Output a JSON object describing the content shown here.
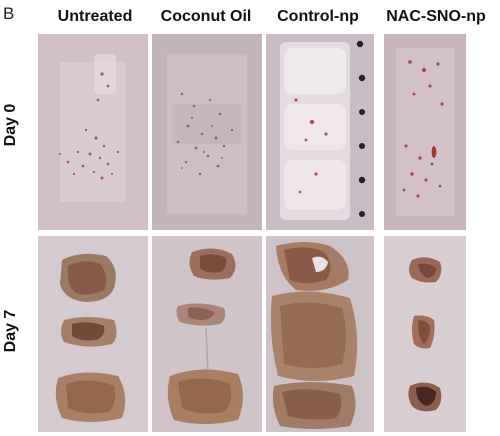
{
  "figure": {
    "panel_letter": "B",
    "columns": [
      "Untreated",
      "Coconut Oil",
      "Control-np",
      "NAC-SNO-np"
    ],
    "rows": [
      "Day 0",
      "Day 7"
    ]
  }
}
